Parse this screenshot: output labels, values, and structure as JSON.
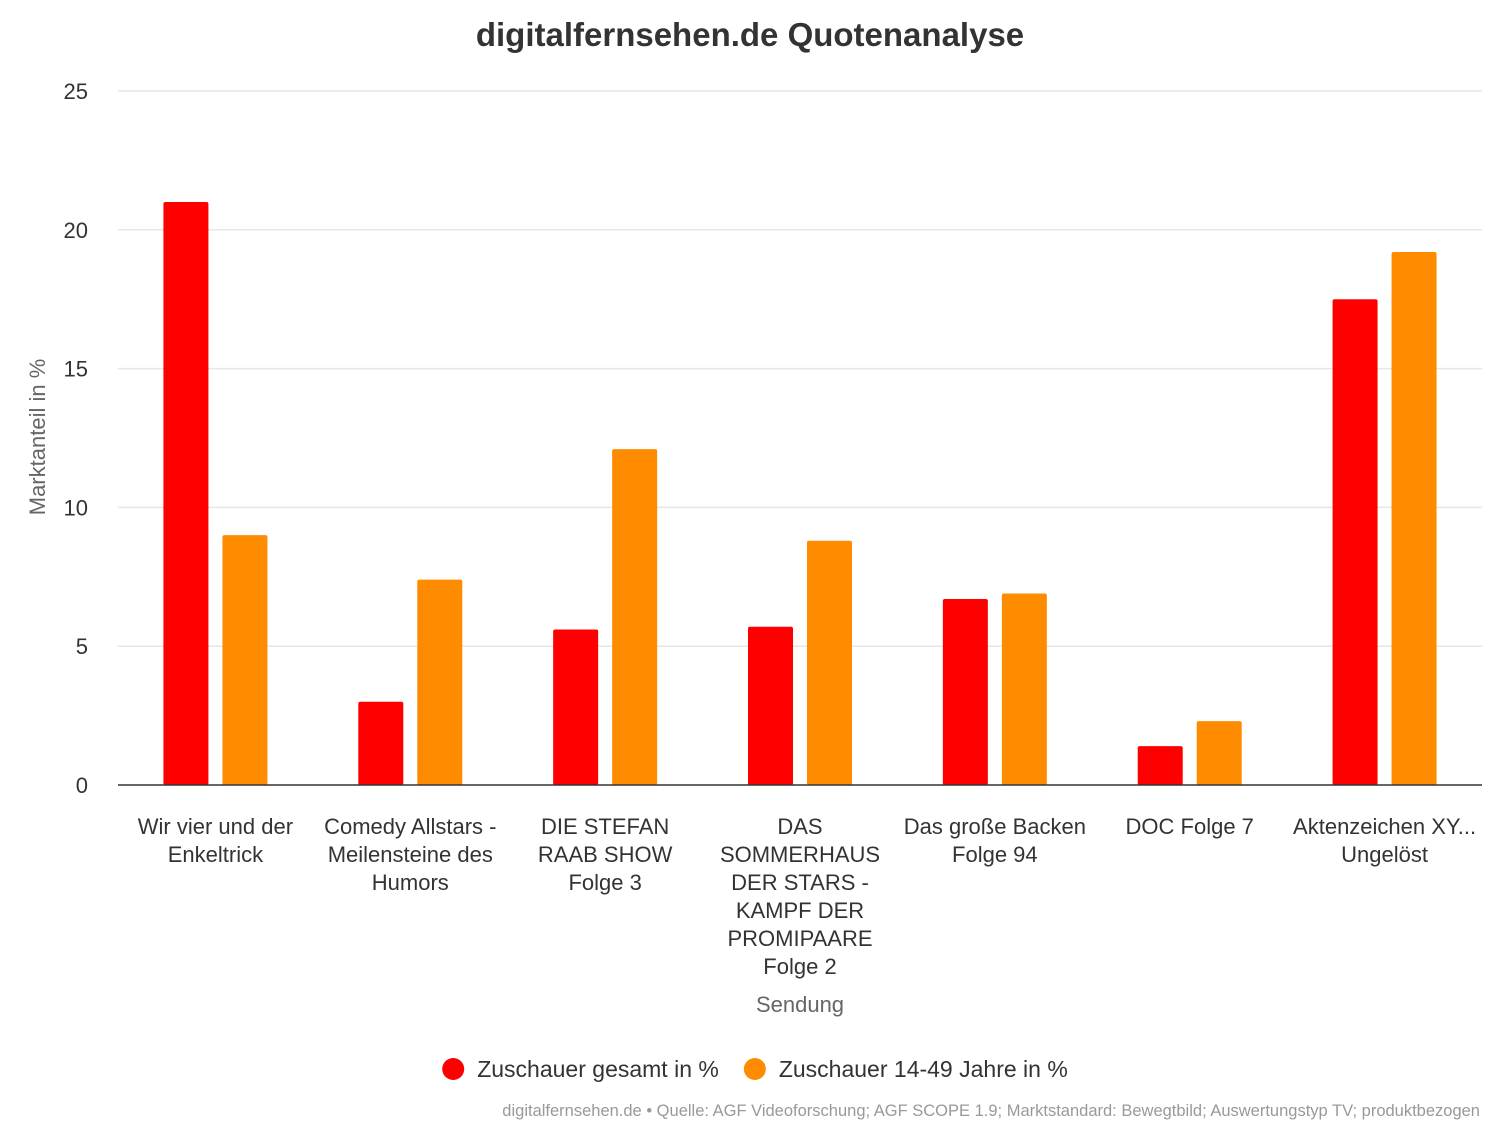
{
  "chart_data": {
    "type": "bar",
    "title": "digitalfernsehen.de Quotenanalyse",
    "xlabel": "Sendung",
    "ylabel": "Marktanteil in %",
    "ylim": [
      0,
      25
    ],
    "yticks": [
      0,
      5,
      10,
      15,
      20,
      25
    ],
    "grid": true,
    "legend_position": "bottom",
    "categories": [
      "Wir vier und der Enkeltrick",
      "Comedy Allstars - Meilensteine des Humors",
      "DIE STEFAN RAAB SHOW Folge 3",
      "DAS SOMMERHAUS DER STARS - KAMPF DER PROMIPAARE Folge 2",
      "Das große Backen Folge 94",
      "DOC Folge 7",
      "Aktenzeichen XY... Ungelöst"
    ],
    "series": [
      {
        "name": "Zuschauer gesamt in %",
        "color": "#ff0000",
        "values": [
          21.0,
          3.0,
          5.6,
          5.7,
          6.7,
          1.4,
          17.5
        ]
      },
      {
        "name": "Zuschauer 14-49 Jahre in %",
        "color": "#ff8c00",
        "values": [
          9.0,
          7.4,
          12.1,
          8.8,
          6.9,
          2.3,
          19.2
        ]
      }
    ],
    "credits": "digitalfernsehen.de • Quelle: AGF Videoforschung; AGF SCOPE 1.9; Marktstandard: Bewegtbild; Auswertungstyp TV; produktbezogen"
  }
}
